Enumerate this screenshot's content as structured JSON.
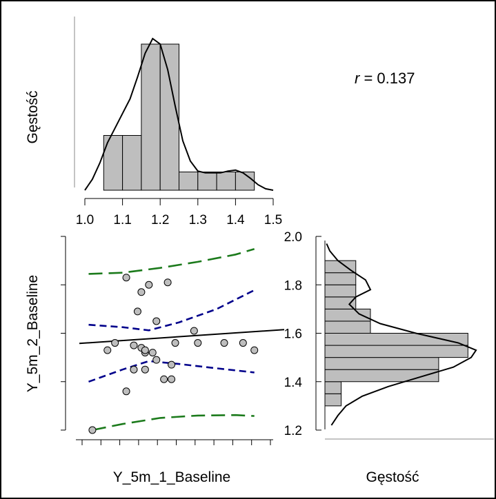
{
  "chart_data": [
    {
      "type": "histogram",
      "panel": "top",
      "ylabel": "Gęstość",
      "xlim": [
        1.0,
        1.5
      ],
      "x_ticks": [
        "1.0",
        "1.1",
        "1.2",
        "1.3",
        "1.4",
        "1.5"
      ],
      "bins": [
        {
          "x0": 1.05,
          "x1": 1.1,
          "density": 3.0
        },
        {
          "x0": 1.1,
          "x1": 1.15,
          "density": 3.0
        },
        {
          "x0": 1.15,
          "x1": 1.2,
          "density": 8.0
        },
        {
          "x0": 1.2,
          "x1": 1.25,
          "density": 8.0
        },
        {
          "x0": 1.25,
          "x1": 1.3,
          "density": 1.0
        },
        {
          "x0": 1.3,
          "x1": 1.35,
          "density": 1.0
        },
        {
          "x0": 1.35,
          "x1": 1.4,
          "density": 1.0
        },
        {
          "x0": 1.4,
          "x1": 1.45,
          "density": 1.0
        }
      ],
      "ylim": [
        0,
        8.0
      ],
      "density_curve": {
        "x": [
          1.0,
          1.02,
          1.04,
          1.06,
          1.08,
          1.1,
          1.12,
          1.14,
          1.16,
          1.18,
          1.2,
          1.22,
          1.24,
          1.26,
          1.28,
          1.3,
          1.32,
          1.34,
          1.36,
          1.38,
          1.4,
          1.42,
          1.44,
          1.46,
          1.48,
          1.5
        ],
        "y": [
          0.0,
          0.6,
          1.5,
          2.6,
          3.4,
          4.2,
          5.0,
          6.2,
          7.5,
          8.3,
          8.0,
          6.6,
          4.6,
          2.7,
          1.6,
          1.05,
          0.95,
          0.95,
          0.95,
          1.05,
          1.1,
          0.95,
          0.65,
          0.3,
          0.08,
          0.0
        ]
      },
      "annotation": {
        "prefix": "r",
        "text": " = 0.137"
      }
    },
    {
      "type": "scatter",
      "panel": "main",
      "xlabel": "Y_5m_1_Baseline",
      "ylabel": "Y_5m_2_Baseline",
      "xlim": [
        1.0,
        1.5
      ],
      "ylim": [
        1.2,
        2.0
      ],
      "y_ticks": [
        "1.4",
        "1.6",
        "1.8"
      ],
      "points": [
        {
          "x": 1.02,
          "y": 1.2
        },
        {
          "x": 1.06,
          "y": 1.53
        },
        {
          "x": 1.08,
          "y": 1.56
        },
        {
          "x": 1.11,
          "y": 1.36
        },
        {
          "x": 1.11,
          "y": 1.83
        },
        {
          "x": 1.13,
          "y": 1.45
        },
        {
          "x": 1.13,
          "y": 1.55
        },
        {
          "x": 1.14,
          "y": 1.69
        },
        {
          "x": 1.15,
          "y": 1.77
        },
        {
          "x": 1.15,
          "y": 1.54
        },
        {
          "x": 1.16,
          "y": 1.45
        },
        {
          "x": 1.16,
          "y": 1.52
        },
        {
          "x": 1.16,
          "y": 1.53
        },
        {
          "x": 1.17,
          "y": 1.8
        },
        {
          "x": 1.18,
          "y": 1.52
        },
        {
          "x": 1.19,
          "y": 1.49
        },
        {
          "x": 1.19,
          "y": 1.65
        },
        {
          "x": 1.21,
          "y": 1.41
        },
        {
          "x": 1.22,
          "y": 1.81
        },
        {
          "x": 1.23,
          "y": 1.41
        },
        {
          "x": 1.23,
          "y": 1.47
        },
        {
          "x": 1.24,
          "y": 1.56
        },
        {
          "x": 1.29,
          "y": 1.61
        },
        {
          "x": 1.3,
          "y": 1.56
        },
        {
          "x": 1.37,
          "y": 1.56
        },
        {
          "x": 1.42,
          "y": 1.56
        },
        {
          "x": 1.45,
          "y": 1.53
        }
      ],
      "regression": {
        "x": [
          1.0,
          1.5
        ],
        "y": [
          1.558,
          1.615
        ]
      },
      "ci_lines": {
        "upper": {
          "x": [
            1.01,
            1.1,
            1.17,
            1.25,
            1.35,
            1.45
          ],
          "y": [
            1.635,
            1.625,
            1.612,
            1.645,
            1.7,
            1.778
          ]
        },
        "lower": {
          "x": [
            1.01,
            1.1,
            1.17,
            1.25,
            1.35,
            1.45
          ],
          "y": [
            1.4,
            1.45,
            1.485,
            1.473,
            1.455,
            1.438
          ]
        }
      },
      "pi_lines": {
        "upper": {
          "x": [
            1.01,
            1.1,
            1.2,
            1.3,
            1.4,
            1.45
          ],
          "y": [
            1.845,
            1.85,
            1.87,
            1.895,
            1.925,
            1.948
          ]
        },
        "lower": {
          "x": [
            1.02,
            1.1,
            1.2,
            1.3,
            1.4,
            1.45
          ],
          "y": [
            1.2,
            1.225,
            1.25,
            1.26,
            1.262,
            1.258
          ]
        }
      },
      "colors": {
        "points_fill": "#bebebe",
        "regression": "#000000",
        "ci": "#00008b",
        "pi": "#1b7a1b"
      }
    },
    {
      "type": "histogram",
      "panel": "right",
      "orientation": "horizontal",
      "xlabel": "Gęstość",
      "ylim": [
        1.2,
        2.0
      ],
      "y_ticks": [
        "1.2",
        "1.4",
        "1.6",
        "1.8",
        "2.0"
      ],
      "bins": [
        {
          "y0": 1.3,
          "y1": 1.35,
          "density": 1.0
        },
        {
          "y0": 1.35,
          "y1": 1.4,
          "density": 1.0
        },
        {
          "y0": 1.4,
          "y1": 1.45,
          "density": 7.0
        },
        {
          "y0": 1.45,
          "y1": 1.5,
          "density": 7.0
        },
        {
          "y0": 1.5,
          "y1": 1.55,
          "density": 8.8
        },
        {
          "y0": 1.55,
          "y1": 1.6,
          "density": 8.8
        },
        {
          "y0": 1.6,
          "y1": 1.65,
          "density": 2.8
        },
        {
          "y0": 1.65,
          "y1": 1.7,
          "density": 2.8
        },
        {
          "y0": 1.7,
          "y1": 1.75,
          "density": 1.9
        },
        {
          "y0": 1.75,
          "y1": 1.8,
          "density": 1.9
        },
        {
          "y0": 1.8,
          "y1": 1.85,
          "density": 1.9
        },
        {
          "y0": 1.85,
          "y1": 1.9,
          "density": 1.9
        }
      ],
      "xlim": [
        0,
        10.4
      ],
      "density_curve": {
        "y": [
          1.22,
          1.26,
          1.3,
          1.34,
          1.38,
          1.42,
          1.46,
          1.5,
          1.53,
          1.56,
          1.6,
          1.64,
          1.68,
          1.72,
          1.75,
          1.78,
          1.82,
          1.86,
          1.9,
          1.94,
          1.97
        ],
        "x": [
          0.4,
          0.8,
          1.3,
          2.3,
          3.9,
          5.9,
          7.9,
          9.0,
          9.3,
          8.2,
          5.6,
          3.4,
          2.1,
          1.5,
          1.9,
          2.8,
          2.5,
          1.6,
          0.8,
          0.3,
          0.1
        ]
      }
    }
  ]
}
